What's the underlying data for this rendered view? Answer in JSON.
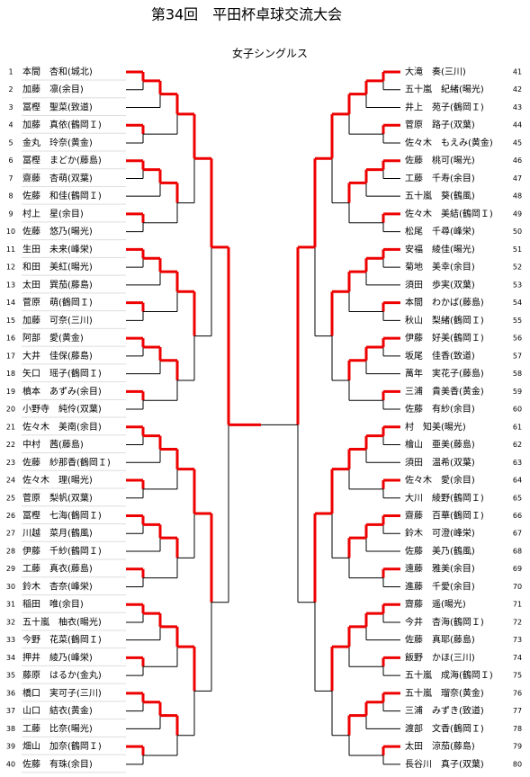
{
  "header": {
    "title": "第34回　平田杯卓球交流大会",
    "subtitle": "女子シングルス"
  },
  "left": [
    {
      "no": "1",
      "name": "本間　杏和(城北)"
    },
    {
      "no": "2",
      "name": "加藤　凛(余目)"
    },
    {
      "no": "3",
      "name": "冨樫　聖菜(致道)"
    },
    {
      "no": "4",
      "name": "加藤　真依(鶴岡Ｉ)"
    },
    {
      "no": "5",
      "name": "金丸　玲奈(黄金)"
    },
    {
      "no": "6",
      "name": "冨樫　まどか(藤島)"
    },
    {
      "no": "7",
      "name": "齋藤　杏萌(双葉)"
    },
    {
      "no": "8",
      "name": "佐藤　和佳(鶴岡Ｉ)"
    },
    {
      "no": "9",
      "name": "村上　星(余目)"
    },
    {
      "no": "10",
      "name": "佐藤　悠乃(暘光)"
    },
    {
      "no": "11",
      "name": "生田　未来(峰栄)"
    },
    {
      "no": "12",
      "name": "和田　美紅(暘光)"
    },
    {
      "no": "13",
      "name": "太田　巽茄(藤島)"
    },
    {
      "no": "14",
      "name": "菅原　萌(鶴岡Ｉ)"
    },
    {
      "no": "15",
      "name": "加藤　可奈(三川)"
    },
    {
      "no": "16",
      "name": "阿部　愛(黄金)"
    },
    {
      "no": "17",
      "name": "大井　佳保(藤島)"
    },
    {
      "no": "18",
      "name": "矢口　瑶子(鶴岡Ｉ)"
    },
    {
      "no": "19",
      "name": "槙本　あずみ(余目)"
    },
    {
      "no": "20",
      "name": "小野寺　純伶(双葉)"
    },
    {
      "no": "21",
      "name": "佐々木　美南(余目)"
    },
    {
      "no": "22",
      "name": "中村　茜(藤島)"
    },
    {
      "no": "23",
      "name": "佐藤　紗那香(鶴岡Ｉ)"
    },
    {
      "no": "24",
      "name": "佐々木　理(暘光)"
    },
    {
      "no": "25",
      "name": "菅原　梨帆(双葉)"
    },
    {
      "no": "26",
      "name": "冨樫　七海(鶴岡Ｉ)"
    },
    {
      "no": "27",
      "name": "川越　菜月(鶴風)"
    },
    {
      "no": "28",
      "name": "伊藤　千紗(鶴岡Ｉ)"
    },
    {
      "no": "29",
      "name": "工藤　真衣(藤島)"
    },
    {
      "no": "30",
      "name": "鈴木　杏奈(峰栄)"
    },
    {
      "no": "31",
      "name": "稲田　唯(余目)"
    },
    {
      "no": "32",
      "name": "五十嵐　柚衣(暘光)"
    },
    {
      "no": "33",
      "name": "今野　花菜(鶴岡Ｉ)"
    },
    {
      "no": "34",
      "name": "押井　綾乃(峰栄)"
    },
    {
      "no": "35",
      "name": "藤原　はるか(金丸)"
    },
    {
      "no": "36",
      "name": "橋口　実可子(三川)"
    },
    {
      "no": "37",
      "name": "山口　結衣(黄金)"
    },
    {
      "no": "38",
      "name": "工藤　比奈(暘光)"
    },
    {
      "no": "39",
      "name": "畑山　加奈(鶴岡Ｉ)"
    },
    {
      "no": "40",
      "name": "佐藤　有珠(余目)"
    }
  ],
  "right": [
    {
      "no": "41",
      "name": "大滝　奏(三川)"
    },
    {
      "no": "42",
      "name": "五十嵐　紀緒(暘光)"
    },
    {
      "no": "43",
      "name": "井上　苑子(鶴岡Ｉ)"
    },
    {
      "no": "44",
      "name": "菅原　路子(双葉)"
    },
    {
      "no": "45",
      "name": "佐々木　もえみ(黄金)"
    },
    {
      "no": "46",
      "name": "佐藤　桃可(暘光)"
    },
    {
      "no": "47",
      "name": "工藤　千寿(余目)"
    },
    {
      "no": "48",
      "name": "五十嵐　葵(鶴風)"
    },
    {
      "no": "49",
      "name": "佐々木　美結(鶴岡Ｉ)"
    },
    {
      "no": "50",
      "name": "松尾　千尋(峰栄)"
    },
    {
      "no": "51",
      "name": "安福　綾佳(暘光)"
    },
    {
      "no": "52",
      "name": "菊地　美幸(余目)"
    },
    {
      "no": "53",
      "name": "須田　歩実(双葉)"
    },
    {
      "no": "54",
      "name": "本間　わかば(藤島)"
    },
    {
      "no": "55",
      "name": "秋山　梨緒(鶴岡Ｉ)"
    },
    {
      "no": "56",
      "name": "伊藤　好美(鶴岡Ｉ)"
    },
    {
      "no": "57",
      "name": "坂尾　佳香(致道)"
    },
    {
      "no": "58",
      "name": "萬年　実花子(藤島)"
    },
    {
      "no": "59",
      "name": "三浦　貴美香(黄金)"
    },
    {
      "no": "60",
      "name": "佐藤　有紗(余目)"
    },
    {
      "no": "61",
      "name": "村　知美(暘光)"
    },
    {
      "no": "62",
      "name": "檜山　亜美(藤島)"
    },
    {
      "no": "63",
      "name": "須田　温希(双葉)"
    },
    {
      "no": "64",
      "name": "佐々木　愛(余目)"
    },
    {
      "no": "65",
      "name": "大川　綾野(鶴岡Ｉ)"
    },
    {
      "no": "66",
      "name": "齋藤　百華(鶴岡Ｉ)"
    },
    {
      "no": "67",
      "name": "鈴木　可澄(峰栄)"
    },
    {
      "no": "68",
      "name": "佐藤　美乃(鶴風)"
    },
    {
      "no": "69",
      "name": "遠藤　雅美(余目)"
    },
    {
      "no": "70",
      "name": "進藤　千愛(余目)"
    },
    {
      "no": "71",
      "name": "齋藤　遥(暘光)"
    },
    {
      "no": "72",
      "name": "今井　杏海(鶴岡Ｉ)"
    },
    {
      "no": "73",
      "name": "佐藤　真耶(藤島)"
    },
    {
      "no": "74",
      "name": "飯野　かほ(三川)"
    },
    {
      "no": "75",
      "name": "五十嵐　成海(鶴岡Ｉ)"
    },
    {
      "no": "76",
      "name": "五十嵐　瑠奈(黄金)"
    },
    {
      "no": "77",
      "name": "三浦　みずき(致道)"
    },
    {
      "no": "78",
      "name": "渡部　文香(鶴岡Ｉ)"
    },
    {
      "no": "79",
      "name": "太田　涼茄(藤島)"
    },
    {
      "no": "80",
      "name": "長谷川　真子(双葉)"
    }
  ]
}
